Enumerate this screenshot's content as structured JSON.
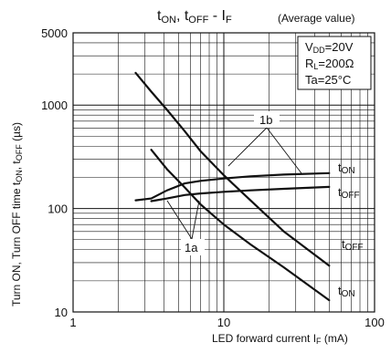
{
  "chart_data": {
    "type": "line",
    "title": "tON, tOFF - IF",
    "title_parts": {
      "t1": "t",
      "s1": "ON",
      "sep": ", t",
      "s2": "OFF",
      "dash": " - I",
      "s3": "F"
    },
    "subtitle": "(Average value)",
    "xlabel": "LED forward current IF (mA)",
    "ylabel": "Turn ON, Turn OFF time tON, tOFF (µs)",
    "x_scale": "log",
    "y_scale": "log",
    "xlim": [
      1,
      100
    ],
    "ylim": [
      10,
      5000
    ],
    "x_ticks": [
      1,
      10,
      100
    ],
    "y_ticks": [
      10,
      100,
      1000,
      5000
    ],
    "x_tick_labels": [
      "1",
      "10",
      "100"
    ],
    "y_tick_labels": [
      "10",
      "100",
      "1000",
      "5000"
    ],
    "grid": true,
    "conditions": [
      "VDD=20V",
      "RL=200Ω",
      "Ta=25°C"
    ],
    "conditions_parts": [
      {
        "a": "V",
        "sub": "DD",
        "b": "=20V"
      },
      {
        "a": "R",
        "sub": "L",
        "b": "=200Ω"
      },
      {
        "a": "Ta=25°C",
        "sub": "",
        "b": ""
      }
    ],
    "series": [
      {
        "name": "tON",
        "group": "1b",
        "x": [
          2.6,
          3.3,
          4.2,
          5.5,
          7,
          10,
          15,
          25,
          50
        ],
        "y": [
          2050,
          1350,
          900,
          560,
          360,
          210,
          120,
          60,
          28
        ]
      },
      {
        "name": "tOFF",
        "group": "1a",
        "x": [
          2.6,
          3.3,
          4.2,
          5.5,
          7,
          10,
          15,
          25,
          50
        ],
        "y": [
          120,
          125,
          150,
          175,
          185,
          195,
          205,
          213,
          220
        ]
      },
      {
        "name": "tOFF",
        "group": "1b",
        "x": [
          3.3,
          4.2,
          5.5,
          7,
          10,
          15,
          25,
          50
        ],
        "y": [
          370,
          240,
          160,
          110,
          70,
          45,
          27,
          13
        ]
      },
      {
        "name": "tON",
        "group": "1a",
        "x": [
          3.3,
          4.2,
          5.5,
          7,
          10,
          15,
          25,
          50
        ],
        "y": [
          118,
          125,
          135,
          140,
          145,
          150,
          155,
          162
        ]
      }
    ],
    "annotations": [
      {
        "text": "1b"
      },
      {
        "text": "1a"
      }
    ],
    "curve_labels": [
      {
        "t": "t",
        "s": "ON"
      },
      {
        "t": "t",
        "s": "OFF"
      },
      {
        "t": "t",
        "s": "OFF"
      },
      {
        "t": "t",
        "s": "ON"
      }
    ],
    "axis_parts": {
      "x_a": "LED forward current I",
      "x_sub": "F",
      "x_b": " (mA)",
      "y_a": "Turn ON, Turn OFF time t",
      "y_s1": "ON",
      "y_mid": ", t",
      "y_s2": "OFF",
      "y_b": " (µs)"
    }
  }
}
